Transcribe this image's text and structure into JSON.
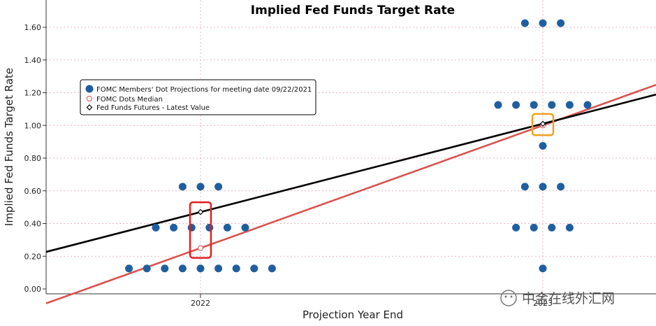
{
  "chart_data": {
    "type": "scatter",
    "title": "Implied Fed Funds Target Rate",
    "xlabel": "Projection Year End",
    "ylabel": "Implied Fed Funds Target Rate",
    "ylim": [
      0,
      1.7
    ],
    "y_ticks": [
      "0.00",
      "0.20",
      "0.40",
      "0.60",
      "0.80",
      "1.00",
      "1.20",
      "1.40",
      "1.60"
    ],
    "x_tick_labels": [
      "2022",
      "2023"
    ],
    "grid": true,
    "legend_position": "upper-left",
    "legend": [
      {
        "label": "FOMC Members' Dot Projections for meeting date 09/22/2021",
        "marker": "filled-circle",
        "color": "#1f5fa0"
      },
      {
        "label": "FOMC Dots Median",
        "marker": "open-circle",
        "color": "#d9534f"
      },
      {
        "label": "Fed Funds Futures - Latest Value",
        "marker": "diamond",
        "color": "#000000"
      }
    ],
    "dot_projections": [
      {
        "year": "2022",
        "rate": 0.125,
        "count": 9
      },
      {
        "year": "2022",
        "rate": 0.375,
        "count": 6
      },
      {
        "year": "2022",
        "rate": 0.625,
        "count": 3
      },
      {
        "year": "2023",
        "rate": 0.125,
        "count": 1
      },
      {
        "year": "2023",
        "rate": 0.375,
        "count": 4
      },
      {
        "year": "2023",
        "rate": 0.625,
        "count": 3
      },
      {
        "year": "2023",
        "rate": 0.875,
        "count": 1
      },
      {
        "year": "2023",
        "rate": 1.125,
        "count": 6
      },
      {
        "year": "2023",
        "rate": 1.625,
        "count": 3
      }
    ],
    "series": [
      {
        "name": "FOMC Dots Median",
        "color": "#d9534f",
        "points": [
          {
            "x": "2022",
            "y": 0.25
          },
          {
            "x": "2023",
            "y": 1.0
          }
        ]
      },
      {
        "name": "Fed Funds Futures - Latest Value",
        "color": "#000000",
        "points": [
          {
            "x": "2022",
            "y": 0.47
          },
          {
            "x": "2023",
            "y": 1.01
          }
        ]
      }
    ],
    "highlights": [
      {
        "year": "2022",
        "color": "#e02020"
      },
      {
        "year": "2023",
        "color": "#f0a020"
      }
    ]
  },
  "watermark": "中金在线外汇网"
}
